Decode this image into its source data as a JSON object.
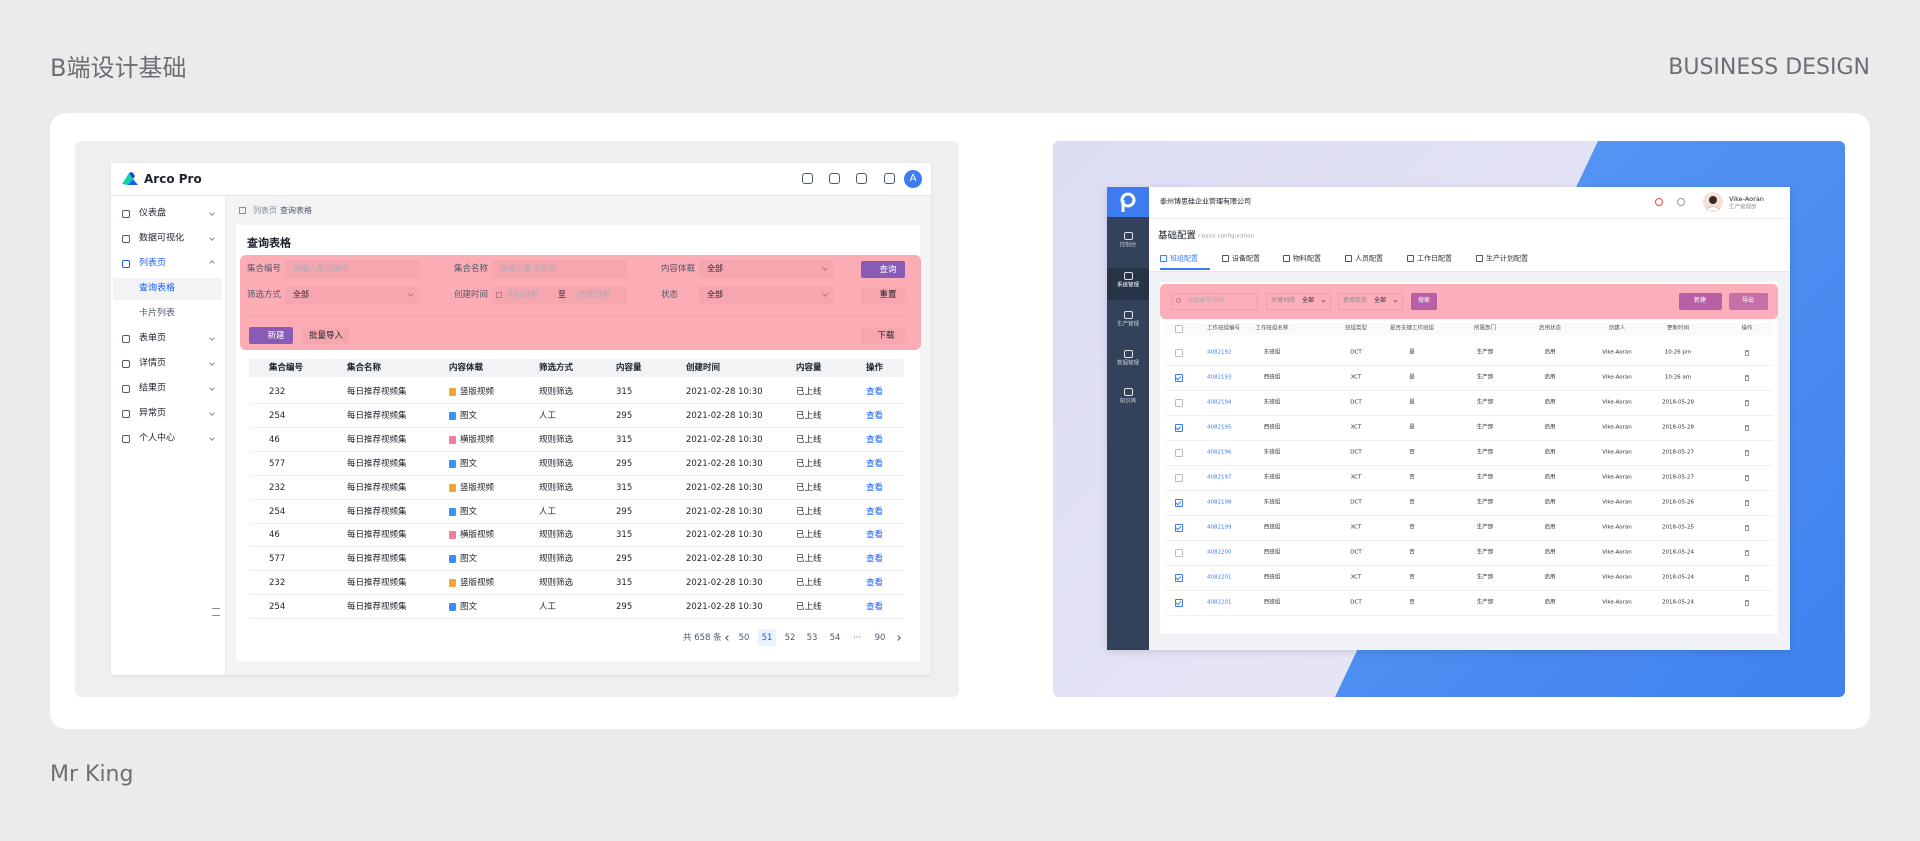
{
  "header": {
    "title": "B端设计基础",
    "brand": "BUSINESS DESIGN",
    "author": "Mr King"
  },
  "arco": {
    "brand": "Arco Pro",
    "avatar": "A",
    "menu": [
      "仪表盘",
      "数据可视化",
      "列表页",
      "表单页",
      "详情页",
      "结果页",
      "异常页",
      "个人中心"
    ],
    "menu_active": 2,
    "submenu": [
      "查询表格",
      "卡片列表"
    ],
    "breadcrumb": [
      "列表页",
      "查询表格"
    ],
    "page_title": "查询表格",
    "filters": [
      {
        "label": "集合编号",
        "value": "请输入集合编号"
      },
      {
        "label": "集合名称",
        "value": "请输入集合名称"
      },
      {
        "label": "内容体载",
        "value": "全部"
      },
      {
        "label": "筛选方式",
        "value": "全部"
      },
      {
        "label": "创建时间",
        "value": "开始日期",
        "to": "至",
        "end": "结束日期"
      },
      {
        "label": "状态",
        "value": "全部"
      }
    ],
    "buttons": {
      "query": "查询",
      "reset": "重置",
      "create": "新建",
      "import": "批量导入",
      "download": "下载"
    },
    "table": {
      "columns": [
        "集合编号",
        "集合名称",
        "内容体载",
        "筛选方式",
        "内容量",
        "创建时间",
        "内容量",
        "操作"
      ],
      "type_colors": [
        "#f7a53b",
        "#3a8ef6",
        "#f27e95",
        "#3a8ef6",
        "#f7a53b",
        "#3a8ef6",
        "#f27e95",
        "#3a8ef6",
        "#f7a53b",
        "#3a8ef6"
      ],
      "rows": [
        [
          "232",
          "每日推荐视频集",
          "竖版视频",
          "规则筛选",
          "315",
          "2021-02-28 10:30",
          "已上线",
          "查看"
        ],
        [
          "254",
          "每日推荐视频集",
          "图文",
          "人工",
          "295",
          "2021-02-28 10:30",
          "已上线",
          "查看"
        ],
        [
          "46",
          "每日推荐视频集",
          "横版视频",
          "规则筛选",
          "315",
          "2021-02-28 10:30",
          "已上线",
          "查看"
        ],
        [
          "577",
          "每日推荐视频集",
          "图文",
          "规则筛选",
          "295",
          "2021-02-28 10:30",
          "已上线",
          "查看"
        ],
        [
          "232",
          "每日推荐视频集",
          "竖版视频",
          "规则筛选",
          "315",
          "2021-02-28 10:30",
          "已上线",
          "查看"
        ],
        [
          "254",
          "每日推荐视频集",
          "图文",
          "人工",
          "295",
          "2021-02-28 10:30",
          "已上线",
          "查看"
        ],
        [
          "46",
          "每日推荐视频集",
          "横版视频",
          "规则筛选",
          "315",
          "2021-02-28 10:30",
          "已上线",
          "查看"
        ],
        [
          "577",
          "每日推荐视频集",
          "图文",
          "规则筛选",
          "295",
          "2021-02-28 10:30",
          "已上线",
          "查看"
        ],
        [
          "232",
          "每日推荐视频集",
          "竖版视频",
          "规则筛选",
          "315",
          "2021-02-28 10:30",
          "已上线",
          "查看"
        ],
        [
          "254",
          "每日推荐视频集",
          "图文",
          "人工",
          "295",
          "2021-02-28 10:30",
          "已上线",
          "查看"
        ]
      ]
    },
    "pagination": {
      "total": "共 658 条",
      "pages": [
        "50",
        "51",
        "52",
        "53",
        "54",
        "···",
        "90"
      ],
      "current": 1
    }
  },
  "portal": {
    "company": "泰州博思硅企业管理有限公司",
    "user": "Vike-Aoran",
    "role": "生产管理部",
    "nav": [
      "控制台",
      "系统管理",
      "生产管理",
      "数据管理",
      "知识库"
    ],
    "nav_active": 1,
    "page_title": "基础配置",
    "page_subtitle": "/ basic configuration",
    "tabs": [
      "班组配置",
      "设备配置",
      "物料配置",
      "人员配置",
      "工作日配置",
      "生产计划配置"
    ],
    "tab_active": 0,
    "search_placeholder": "班组编号/名称",
    "selects": [
      {
        "label": "关键词段",
        "value": "全部"
      },
      {
        "label": "使用状态",
        "value": "全部"
      }
    ],
    "buttons": {
      "search": "搜索",
      "create": "新建",
      "export": "导出"
    },
    "table": {
      "columns": [
        "工作班组编号",
        "工作班组名称",
        "班组类型",
        "是否关键工作班组",
        "所属部门",
        "启用状态",
        "创建人",
        "更新时间",
        "操作"
      ],
      "checked": [
        false,
        true,
        false,
        true,
        false,
        false,
        true,
        true,
        false,
        true,
        true
      ],
      "rows": [
        [
          "4082192",
          "东班组",
          "DCT",
          "是",
          "生产部",
          "启用",
          "Vike-Aoran",
          "10:26 pm"
        ],
        [
          "4082193",
          "西班组",
          "XCT",
          "是",
          "生产部",
          "启用",
          "Vike-Aoran",
          "10:26 am"
        ],
        [
          "4082194",
          "东班组",
          "DCT",
          "是",
          "生产部",
          "启用",
          "Vike-Aoran",
          "2018-05-28"
        ],
        [
          "4082195",
          "西班组",
          "XCT",
          "是",
          "生产部",
          "启用",
          "Vike-Aoran",
          "2018-05-28"
        ],
        [
          "4082196",
          "东班组",
          "DCT",
          "否",
          "生产部",
          "启用",
          "Vike-Aoran",
          "2018-05-27"
        ],
        [
          "4082197",
          "东班组",
          "XCT",
          "否",
          "生产部",
          "启用",
          "Vike-Aoran",
          "2018-05-27"
        ],
        [
          "4082198",
          "东班组",
          "DCT",
          "否",
          "生产部",
          "启用",
          "Vike-Aoran",
          "2018-05-26"
        ],
        [
          "4082199",
          "西班组",
          "XCT",
          "否",
          "生产部",
          "启用",
          "Vike-Aoran",
          "2018-05-25"
        ],
        [
          "4082200",
          "西班组",
          "DCT",
          "否",
          "生产部",
          "启用",
          "Vike-Aoran",
          "2018-05-24"
        ],
        [
          "4082201",
          "西班组",
          "XCT",
          "否",
          "生产部",
          "启用",
          "Vike-Aoran",
          "2018-05-24"
        ],
        [
          "4082201",
          "西班组",
          "DCT",
          "否",
          "生产部",
          "启用",
          "Vike-Aoran",
          "2018-05-24"
        ]
      ]
    }
  }
}
